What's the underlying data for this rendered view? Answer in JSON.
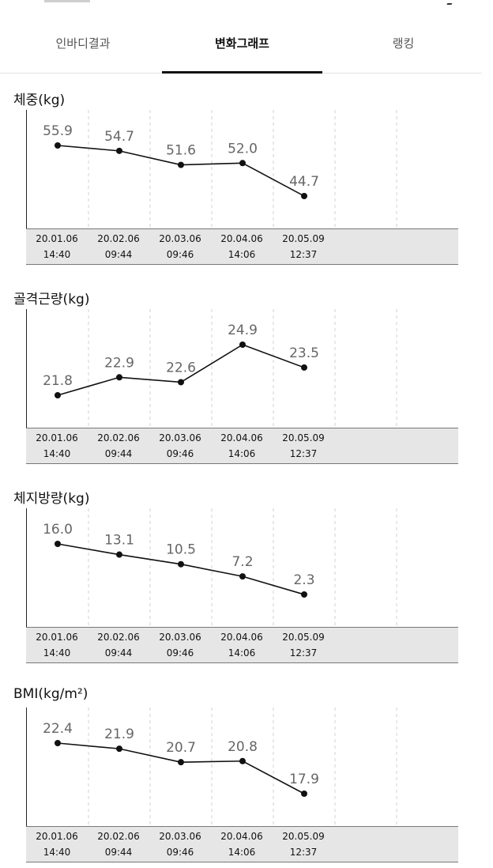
{
  "tabs": [
    {
      "label": "인바디결과",
      "active": false
    },
    {
      "label": "변화그래프",
      "active": true
    },
    {
      "label": "랭킹",
      "active": false
    }
  ],
  "dates": [
    {
      "date": "20.01.06",
      "time": "14:40"
    },
    {
      "date": "20.02.06",
      "time": "09:44"
    },
    {
      "date": "20.03.06",
      "time": "09:46"
    },
    {
      "date": "20.04.06",
      "time": "14:06"
    },
    {
      "date": "20.05.09",
      "time": "12:37"
    }
  ],
  "sections": [
    {
      "title": "체중(kg)"
    },
    {
      "title": "골격근량(kg)"
    },
    {
      "title": "체지방량(kg)"
    },
    {
      "title": "BMI(kg/m²)"
    }
  ],
  "chart_data": [
    {
      "type": "line",
      "title": "체중(kg)",
      "categories": [
        "20.01.06 14:40",
        "20.02.06 09:44",
        "20.03.06 09:46",
        "20.04.06 14:06",
        "20.05.09 12:37"
      ],
      "values": [
        55.9,
        54.7,
        51.6,
        52.0,
        44.7
      ],
      "labels": [
        "55.9",
        "54.7",
        "51.6",
        "52.0",
        "44.7"
      ],
      "grid": true
    },
    {
      "type": "line",
      "title": "골격근량(kg)",
      "categories": [
        "20.01.06 14:40",
        "20.02.06 09:44",
        "20.03.06 09:46",
        "20.04.06 14:06",
        "20.05.09 12:37"
      ],
      "values": [
        21.8,
        22.9,
        22.6,
        24.9,
        23.5
      ],
      "labels": [
        "21.8",
        "22.9",
        "22.6",
        "24.9",
        "23.5"
      ],
      "grid": true
    },
    {
      "type": "line",
      "title": "체지방량(kg)",
      "categories": [
        "20.01.06 14:40",
        "20.02.06 09:44",
        "20.03.06 09:46",
        "20.04.06 14:06",
        "20.05.09 12:37"
      ],
      "values": [
        16.0,
        13.1,
        10.5,
        7.2,
        2.3
      ],
      "labels": [
        "16.0",
        "13.1",
        "10.5",
        "7.2",
        "2.3"
      ],
      "grid": true
    },
    {
      "type": "line",
      "title": "BMI(kg/m²)",
      "categories": [
        "20.01.06 14:40",
        "20.02.06 09:44",
        "20.03.06 09:46",
        "20.04.06 14:06",
        "20.05.09 12:37"
      ],
      "values": [
        22.4,
        21.9,
        20.7,
        20.8,
        17.9
      ],
      "labels": [
        "22.4",
        "21.9",
        "20.7",
        "20.8",
        "17.9"
      ],
      "grid": true
    }
  ]
}
